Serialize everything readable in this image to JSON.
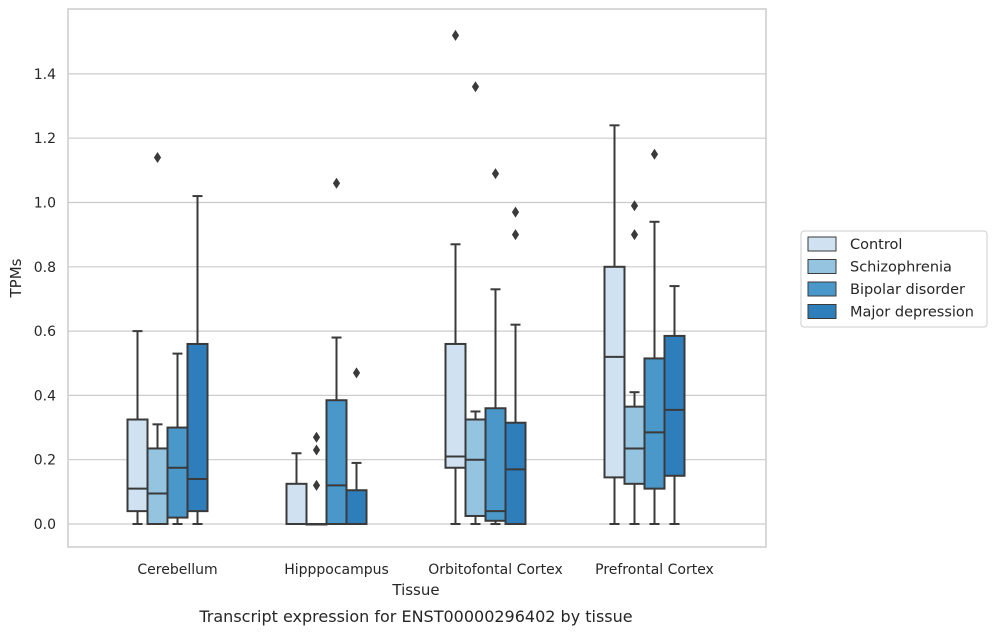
{
  "chart_data": {
    "type": "box",
    "caption": "Transcript expression for ENST00000296402 by tissue",
    "xlabel": "Tissue",
    "ylabel": "TPMs",
    "ylim": [
      -0.07,
      1.595
    ],
    "yticks": [
      0.0,
      0.2,
      0.4,
      0.6,
      0.8,
      1.0,
      1.2,
      1.4
    ],
    "ytick_labels": [
      "0.0",
      "0.2",
      "0.4",
      "0.6",
      "0.8",
      "1.0",
      "1.2",
      "1.4"
    ],
    "grid": true,
    "legend_position": "right",
    "categories": [
      "Cerebellum",
      "Hipppocampus",
      "Orbitofontal Cortex",
      "Prefrontal Cortex"
    ],
    "series": [
      {
        "name": "Control",
        "color": "#d0e1f2",
        "boxes": [
          {
            "whislo": 0.0,
            "q1": 0.04,
            "med": 0.11,
            "q3": 0.325,
            "whishi": 0.6,
            "fliers": []
          },
          {
            "whislo": 0.0,
            "q1": 0.0,
            "med": 0.0,
            "q3": 0.125,
            "whishi": 0.22,
            "fliers": []
          },
          {
            "whislo": 0.0,
            "q1": 0.175,
            "med": 0.21,
            "q3": 0.56,
            "whishi": 0.87,
            "fliers": [
              1.52
            ]
          },
          {
            "whislo": 0.0,
            "q1": 0.145,
            "med": 0.52,
            "q3": 0.8,
            "whishi": 1.24,
            "fliers": []
          }
        ]
      },
      {
        "name": "Schizophrenia",
        "color": "#94c4df",
        "boxes": [
          {
            "whislo": 0.0,
            "q1": 0.0,
            "med": 0.095,
            "q3": 0.235,
            "whishi": 0.31,
            "fliers": [
              1.14
            ]
          },
          {
            "whislo": 0.0,
            "q1": 0.0,
            "med": 0.0,
            "q3": 0.0,
            "whishi": 0.0,
            "fliers": [
              0.12,
              0.23,
              0.27
            ]
          },
          {
            "whislo": 0.0,
            "q1": 0.025,
            "med": 0.2,
            "q3": 0.325,
            "whishi": 0.35,
            "fliers": [
              1.36
            ]
          },
          {
            "whislo": 0.0,
            "q1": 0.125,
            "med": 0.235,
            "q3": 0.365,
            "whishi": 0.41,
            "fliers": [
              0.9,
              0.99
            ]
          }
        ]
      },
      {
        "name": "Bipolar disorder",
        "color": "#4a98c9",
        "boxes": [
          {
            "whislo": 0.0,
            "q1": 0.02,
            "med": 0.175,
            "q3": 0.3,
            "whishi": 0.53,
            "fliers": []
          },
          {
            "whislo": 0.0,
            "q1": 0.0,
            "med": 0.12,
            "q3": 0.385,
            "whishi": 0.58,
            "fliers": [
              1.06
            ]
          },
          {
            "whislo": 0.0,
            "q1": 0.01,
            "med": 0.04,
            "q3": 0.36,
            "whishi": 0.73,
            "fliers": [
              1.09
            ]
          },
          {
            "whislo": 0.0,
            "q1": 0.11,
            "med": 0.285,
            "q3": 0.515,
            "whishi": 0.94,
            "fliers": [
              1.15
            ]
          }
        ]
      },
      {
        "name": "Major depression",
        "color": "#2e7ebc",
        "boxes": [
          {
            "whislo": 0.0,
            "q1": 0.04,
            "med": 0.14,
            "q3": 0.56,
            "whishi": 1.02,
            "fliers": []
          },
          {
            "whislo": 0.0,
            "q1": 0.0,
            "med": 0.0,
            "q3": 0.105,
            "whishi": 0.19,
            "fliers": [
              0.47
            ]
          },
          {
            "whislo": 0.0,
            "q1": 0.0,
            "med": 0.17,
            "q3": 0.315,
            "whishi": 0.62,
            "fliers": [
              0.9,
              0.97
            ]
          },
          {
            "whislo": 0.0,
            "q1": 0.15,
            "med": 0.355,
            "q3": 0.585,
            "whishi": 0.74,
            "fliers": []
          }
        ]
      }
    ]
  }
}
